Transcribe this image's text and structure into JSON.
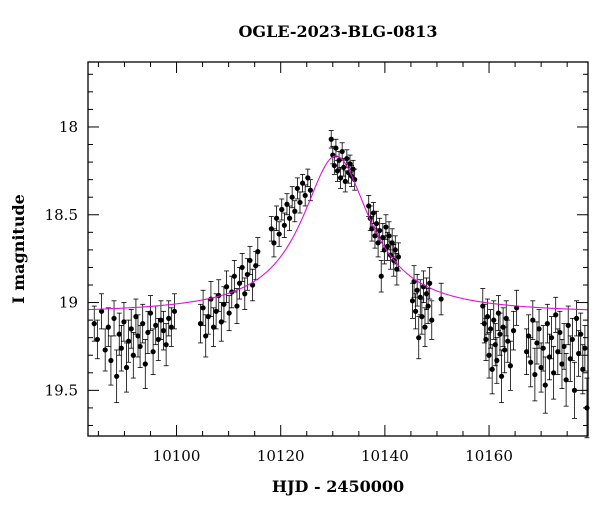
{
  "chart_data": {
    "type": "scatter",
    "title": "OGLE-2023-BLG-0813",
    "xlabel": "HJD - 2450000",
    "ylabel": "I magnitude",
    "xlim": [
      10083,
      10179
    ],
    "ylim": [
      19.76,
      17.63
    ],
    "y_inverted": true,
    "x_ticks": [
      10100,
      10120,
      10140,
      10160
    ],
    "y_ticks": [
      18,
      18.5,
      19,
      19.5
    ],
    "grid": false,
    "colors": {
      "points": "#000000",
      "model": "#e010e0"
    },
    "model": {
      "t0": 10130.6,
      "baseline": 19.065,
      "peak": 18.165,
      "tE": 8.0
    },
    "series": [
      {
        "name": "",
        "points": [
          [
            10084.2,
            19.12,
            0.1
          ],
          [
            10084.8,
            19.21,
            0.11
          ],
          [
            10085.6,
            19.05,
            0.1
          ],
          [
            10086.3,
            19.27,
            0.12
          ],
          [
            10086.9,
            19.14,
            0.11
          ],
          [
            10087.4,
            19.33,
            0.14
          ],
          [
            10088.0,
            19.09,
            0.1
          ],
          [
            10088.5,
            19.42,
            0.15
          ],
          [
            10089.0,
            19.18,
            0.12
          ],
          [
            10089.4,
            19.26,
            0.13
          ],
          [
            10089.9,
            19.11,
            0.11
          ],
          [
            10090.4,
            19.37,
            0.14
          ],
          [
            10090.8,
            19.22,
            0.12
          ],
          [
            10091.3,
            19.15,
            0.11
          ],
          [
            10091.7,
            19.3,
            0.13
          ],
          [
            10092.2,
            19.08,
            0.1
          ],
          [
            10092.6,
            19.19,
            0.12
          ],
          [
            10093.0,
            19.25,
            0.12
          ],
          [
            10093.5,
            19.12,
            0.11
          ],
          [
            10094.0,
            19.35,
            0.14
          ],
          [
            10094.5,
            19.17,
            0.12
          ],
          [
            10095.0,
            19.06,
            0.1
          ],
          [
            10095.5,
            19.28,
            0.13
          ],
          [
            10096.0,
            19.13,
            0.11
          ],
          [
            10096.5,
            19.21,
            0.12
          ],
          [
            10097.0,
            19.1,
            0.11
          ],
          [
            10097.5,
            19.16,
            0.11
          ],
          [
            10098.0,
            19.24,
            0.12
          ],
          [
            10098.5,
            19.09,
            0.1
          ],
          [
            10099.0,
            19.14,
            0.11
          ],
          [
            10099.6,
            19.05,
            0.1
          ],
          [
            10104.6,
            19.12,
            0.11
          ],
          [
            10105.1,
            19.03,
            0.1
          ],
          [
            10105.6,
            19.19,
            0.12
          ],
          [
            10106.1,
            19.08,
            0.1
          ],
          [
            10106.6,
            18.98,
            0.1
          ],
          [
            10107.1,
            19.14,
            0.11
          ],
          [
            10107.6,
            19.05,
            0.1
          ],
          [
            10108.1,
            18.96,
            0.09
          ],
          [
            10108.6,
            19.11,
            0.11
          ],
          [
            10109.1,
            19.01,
            0.1
          ],
          [
            10109.6,
            18.91,
            0.09
          ],
          [
            10110.1,
            19.06,
            0.1
          ],
          [
            10110.6,
            18.94,
            0.09
          ],
          [
            10111.1,
            18.85,
            0.09
          ],
          [
            10111.6,
            19.02,
            0.1
          ],
          [
            10112.1,
            18.89,
            0.09
          ],
          [
            10112.6,
            18.8,
            0.08
          ],
          [
            10113.1,
            18.95,
            0.09
          ],
          [
            10113.6,
            18.84,
            0.09
          ],
          [
            10114.1,
            18.76,
            0.08
          ],
          [
            10114.6,
            18.9,
            0.09
          ],
          [
            10115.2,
            18.79,
            0.08
          ],
          [
            10115.6,
            18.71,
            0.08
          ],
          [
            10118.2,
            18.58,
            0.07
          ],
          [
            10118.7,
            18.66,
            0.08
          ],
          [
            10119.2,
            18.52,
            0.07
          ],
          [
            10119.7,
            18.61,
            0.07
          ],
          [
            10120.2,
            18.47,
            0.06
          ],
          [
            10120.7,
            18.56,
            0.07
          ],
          [
            10121.2,
            18.44,
            0.06
          ],
          [
            10121.7,
            18.52,
            0.07
          ],
          [
            10122.2,
            18.4,
            0.06
          ],
          [
            10122.7,
            18.48,
            0.06
          ],
          [
            10123.2,
            18.35,
            0.06
          ],
          [
            10123.7,
            18.43,
            0.06
          ],
          [
            10124.2,
            18.32,
            0.05
          ],
          [
            10124.7,
            18.39,
            0.06
          ],
          [
            10125.2,
            18.29,
            0.05
          ],
          [
            10125.7,
            18.36,
            0.06
          ],
          [
            10129.7,
            18.07,
            0.05
          ],
          [
            10130.0,
            18.16,
            0.05
          ],
          [
            10130.3,
            18.22,
            0.05
          ],
          [
            10130.6,
            18.12,
            0.05
          ],
          [
            10130.9,
            18.25,
            0.06
          ],
          [
            10131.2,
            18.19,
            0.05
          ],
          [
            10131.5,
            18.29,
            0.06
          ],
          [
            10131.8,
            18.14,
            0.05
          ],
          [
            10132.1,
            18.23,
            0.05
          ],
          [
            10132.4,
            18.31,
            0.06
          ],
          [
            10132.7,
            18.18,
            0.05
          ],
          [
            10133.0,
            18.26,
            0.06
          ],
          [
            10133.3,
            18.21,
            0.05
          ],
          [
            10133.6,
            18.28,
            0.06
          ],
          [
            10133.9,
            18.24,
            0.05
          ],
          [
            10134.2,
            18.3,
            0.06
          ],
          [
            10136.9,
            18.45,
            0.06
          ],
          [
            10137.2,
            18.52,
            0.07
          ],
          [
            10137.5,
            18.58,
            0.07
          ],
          [
            10137.8,
            18.49,
            0.06
          ],
          [
            10138.1,
            18.62,
            0.07
          ],
          [
            10138.4,
            18.55,
            0.07
          ],
          [
            10138.7,
            18.66,
            0.08
          ],
          [
            10139.0,
            18.59,
            0.07
          ],
          [
            10139.3,
            18.85,
            0.09
          ],
          [
            10139.6,
            18.63,
            0.08
          ],
          [
            10139.9,
            18.7,
            0.08
          ],
          [
            10140.2,
            18.57,
            0.07
          ],
          [
            10140.5,
            18.68,
            0.08
          ],
          [
            10140.8,
            18.62,
            0.08
          ],
          [
            10141.1,
            18.73,
            0.08
          ],
          [
            10141.4,
            18.66,
            0.08
          ],
          [
            10141.7,
            18.76,
            0.09
          ],
          [
            10142.0,
            18.7,
            0.08
          ],
          [
            10142.3,
            18.81,
            0.09
          ],
          [
            10142.6,
            18.74,
            0.08
          ],
          [
            10145.3,
            18.99,
            0.1
          ],
          [
            10145.6,
            18.88,
            0.09
          ],
          [
            10145.9,
            19.05,
            0.1
          ],
          [
            10146.2,
            18.93,
            0.09
          ],
          [
            10146.5,
            19.2,
            0.12
          ],
          [
            10146.8,
            18.97,
            0.1
          ],
          [
            10147.1,
            19.08,
            0.1
          ],
          [
            10147.4,
            18.91,
            0.09
          ],
          [
            10147.7,
            19.14,
            0.11
          ],
          [
            10148.0,
            18.95,
            0.09
          ],
          [
            10148.3,
            19.02,
            0.1
          ],
          [
            10148.6,
            18.89,
            0.09
          ],
          [
            10149.0,
            19.1,
            0.11
          ],
          [
            10150.8,
            18.98,
            0.09
          ],
          [
            10158.8,
            19.02,
            0.1
          ],
          [
            10159.1,
            19.12,
            0.11
          ],
          [
            10159.4,
            19.21,
            0.12
          ],
          [
            10159.7,
            19.08,
            0.1
          ],
          [
            10160.0,
            19.3,
            0.13
          ],
          [
            10160.3,
            19.15,
            0.11
          ],
          [
            10160.6,
            19.38,
            0.14
          ],
          [
            10160.9,
            19.1,
            0.11
          ],
          [
            10161.2,
            19.24,
            0.12
          ],
          [
            10161.5,
            19.33,
            0.13
          ],
          [
            10161.8,
            19.06,
            0.1
          ],
          [
            10162.1,
            19.18,
            0.12
          ],
          [
            10162.4,
            19.42,
            0.15
          ],
          [
            10162.7,
            19.14,
            0.11
          ],
          [
            10163.0,
            19.27,
            0.13
          ],
          [
            10163.3,
            19.09,
            0.1
          ],
          [
            10163.6,
            19.22,
            0.12
          ],
          [
            10164.1,
            19.36,
            0.14
          ],
          [
            10164.7,
            19.16,
            0.11
          ],
          [
            10165.3,
            19.03,
            0.1
          ],
          [
            10167.2,
            19.28,
            0.13
          ],
          [
            10167.6,
            19.19,
            0.12
          ],
          [
            10168.0,
            19.34,
            0.14
          ],
          [
            10168.4,
            19.1,
            0.11
          ],
          [
            10168.8,
            19.41,
            0.15
          ],
          [
            10169.2,
            19.23,
            0.12
          ],
          [
            10169.6,
            19.15,
            0.11
          ],
          [
            10170.0,
            19.37,
            0.14
          ],
          [
            10170.4,
            19.26,
            0.13
          ],
          [
            10170.8,
            19.47,
            0.16
          ],
          [
            10171.2,
            19.12,
            0.11
          ],
          [
            10171.6,
            19.31,
            0.13
          ],
          [
            10172.0,
            19.2,
            0.12
          ],
          [
            10172.4,
            19.4,
            0.15
          ],
          [
            10172.8,
            19.07,
            0.1
          ],
          [
            10173.2,
            19.28,
            0.13
          ],
          [
            10173.6,
            19.17,
            0.12
          ],
          [
            10174.0,
            19.35,
            0.14
          ],
          [
            10174.4,
            19.25,
            0.13
          ],
          [
            10174.8,
            19.44,
            0.15
          ],
          [
            10175.2,
            19.13,
            0.11
          ],
          [
            10175.6,
            19.32,
            0.13
          ],
          [
            10176.0,
            19.21,
            0.12
          ],
          [
            10176.4,
            19.5,
            0.16
          ],
          [
            10176.8,
            19.09,
            0.1
          ],
          [
            10177.2,
            19.29,
            0.13
          ],
          [
            10177.6,
            19.18,
            0.12
          ],
          [
            10178.0,
            19.38,
            0.14
          ],
          [
            10178.4,
            19.26,
            0.13
          ],
          [
            10178.8,
            19.6,
            0.17
          ]
        ]
      }
    ]
  }
}
